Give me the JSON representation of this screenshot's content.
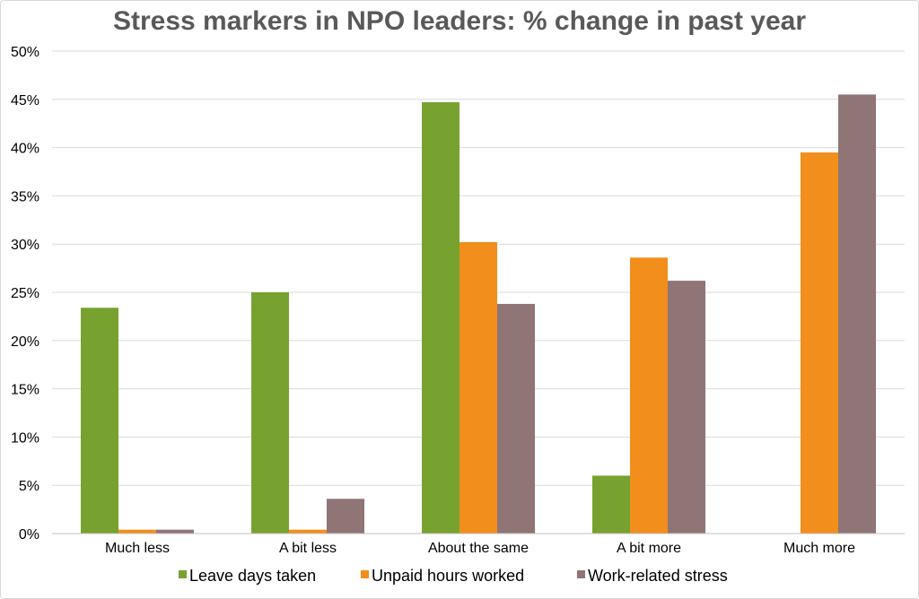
{
  "chart_data": {
    "type": "bar",
    "title": "Stress markers in NPO leaders: % change in past year",
    "categories": [
      "Much less",
      "A bit less",
      "About the same",
      "A bit more",
      "Much more"
    ],
    "series": [
      {
        "name": "Leave days taken",
        "color": "#77a22f",
        "values": [
          23.4,
          25.0,
          44.7,
          6.0,
          0.0
        ]
      },
      {
        "name": "Unpaid hours worked",
        "color": "#f28e1c",
        "values": [
          0.4,
          0.4,
          30.2,
          28.6,
          39.5
        ]
      },
      {
        "name": "Work-related stress",
        "color": "#8f7575",
        "values": [
          0.4,
          3.6,
          23.8,
          26.2,
          45.5
        ]
      }
    ],
    "y_ticks": [
      "0%",
      "5%",
      "10%",
      "15%",
      "20%",
      "25%",
      "30%",
      "35%",
      "40%",
      "45%",
      "50%"
    ],
    "ylim": [
      0,
      50
    ],
    "grid": true,
    "legend_position": "bottom"
  }
}
